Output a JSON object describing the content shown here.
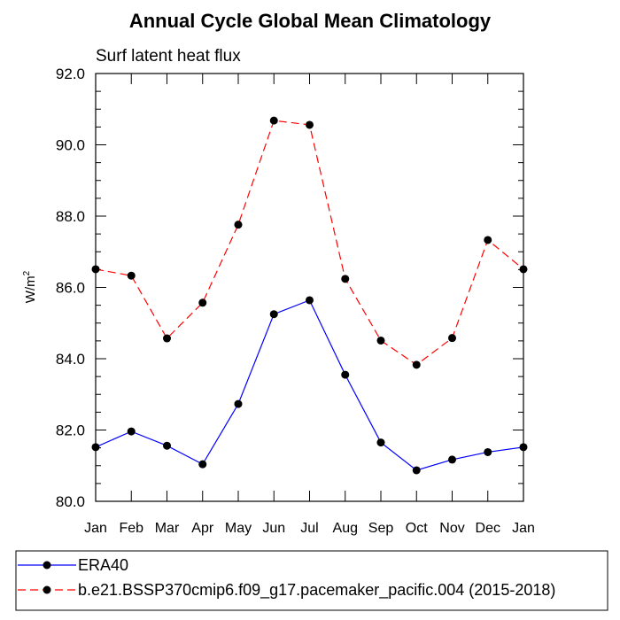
{
  "chart_data": {
    "type": "line",
    "title": "Annual Cycle Global Mean Climatology",
    "subtitle": "Surf latent heat flux",
    "ylabel": "W/m",
    "ylabel_superscript": "2",
    "xlabel": "",
    "ylim": [
      80.0,
      92.0
    ],
    "y_ticks": [
      "80.0",
      "82.0",
      "84.0",
      "86.0",
      "88.0",
      "90.0",
      "92.0"
    ],
    "y_tick_values": [
      80,
      82,
      84,
      86,
      88,
      90,
      92
    ],
    "categories": [
      "Jan",
      "Feb",
      "Mar",
      "Apr",
      "May",
      "Jun",
      "Jul",
      "Aug",
      "Sep",
      "Oct",
      "Nov",
      "Dec",
      "Jan"
    ],
    "grid": false,
    "legend_placement": "bottom",
    "series": [
      {
        "name": "ERA40",
        "color": "#0000ff",
        "line_style": "solid",
        "values": [
          81.52,
          81.96,
          81.56,
          81.04,
          82.73,
          85.25,
          85.64,
          83.55,
          81.65,
          80.87,
          81.17,
          81.38,
          81.52
        ]
      },
      {
        "name": "b.e21.BSSP370cmip6.f09_g17.pacemaker_pacific.004 (2015-2018)",
        "color": "#ff0000",
        "line_style": "dashed",
        "values": [
          86.51,
          86.33,
          84.57,
          85.57,
          87.76,
          90.68,
          90.56,
          86.24,
          84.51,
          83.83,
          84.58,
          87.33,
          86.51
        ]
      }
    ]
  }
}
